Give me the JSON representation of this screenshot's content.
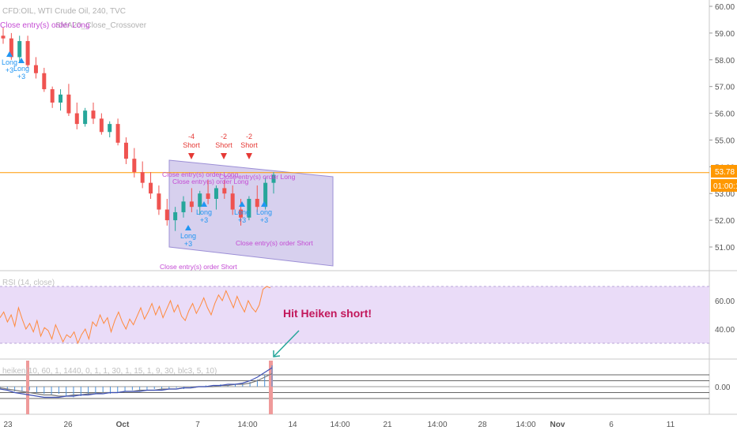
{
  "header": {
    "symbol_line": "CFD:OIL, WTI Crude Oil, 240, TVC",
    "strategy_line": "SMA20_Close_Crossover",
    "overlap_text": "Close entry(s) order Long"
  },
  "price_axis": {
    "ticks": [
      "60.00",
      "59.00",
      "58.00",
      "57.00",
      "56.00",
      "55.00",
      "54.00",
      "53.00",
      "52.00",
      "51.00"
    ],
    "last_price": "53.78",
    "countdown": "01:00:1?"
  },
  "rsi_pane": {
    "label": "RSI (14, close)",
    "ticks": [
      "60.00",
      "40.00"
    ]
  },
  "heiken_pane": {
    "label": "heiken(10, 60, 1, 1440, 0, 1, 1, 30, 1, 15, 1, 9, 30, blc3, 5, 10)",
    "ticks": [
      "0.00"
    ]
  },
  "annotation": {
    "text": "Hit Heiken short!"
  },
  "time_axis": [
    "23",
    "26",
    "Oct",
    "7",
    "14:00",
    "14",
    "14:00",
    "21",
    "14:00",
    "28",
    "14:00",
    "Nov",
    "6",
    "11"
  ],
  "signals": [
    {
      "kind": "short",
      "count": "-4",
      "label": "Short"
    },
    {
      "kind": "short",
      "count": "-2",
      "label": "Short"
    },
    {
      "kind": "short",
      "count": "-2",
      "label": "Short"
    },
    {
      "kind": "long",
      "label": "Long",
      "count": "+3"
    },
    {
      "kind": "long",
      "label": "Long",
      "count": "+3"
    },
    {
      "kind": "long",
      "label": "Long",
      "count": "+3"
    },
    {
      "kind": "long",
      "label": "Long",
      "count": "+3"
    },
    {
      "kind": "long",
      "label": "Long",
      "count": "+3"
    },
    {
      "kind": "long",
      "label": "Long",
      "count": "+3"
    }
  ],
  "order_texts": [
    "Close entry(s) order Long",
    "Close entry(s) order Long",
    "Close entry(s) order Long",
    "Close entry(s) order Short",
    "Close entry(s) order Short"
  ],
  "colors": {
    "up": "#26a69a",
    "down": "#ef5350",
    "rsi_line": "#ff8a3d",
    "rsi_band": "#eadcf8",
    "channel_fill": "#c9c0e8",
    "channel_stroke": "#9c8fd6",
    "price_line": "#ff9800",
    "short_signal": "#e53935",
    "long_signal": "#2196f3",
    "close_order": "#c44bd4",
    "annotation": "#c2185b",
    "arrow": "#26a69a",
    "heiken_hist": "#4a90d9",
    "heiken_fast": "#3f51b5",
    "heiken_slow": "#7b7b7b",
    "heiken_marker": "#ef9a9a"
  },
  "chart_data": {
    "type": "candlestick",
    "y_range": [
      50.4,
      60.2
    ],
    "ohlc": [
      [
        58.9,
        59.2,
        58.6,
        58.8
      ],
      [
        58.8,
        59.0,
        58.0,
        58.1
      ],
      [
        58.1,
        58.9,
        57.9,
        58.7
      ],
      [
        58.7,
        58.9,
        57.7,
        57.8
      ],
      [
        57.8,
        58.1,
        57.3,
        57.5
      ],
      [
        57.5,
        57.7,
        56.8,
        56.9
      ],
      [
        56.9,
        57.0,
        56.2,
        56.4
      ],
      [
        56.4,
        56.9,
        56.1,
        56.7
      ],
      [
        56.7,
        57.1,
        55.9,
        56.0
      ],
      [
        56.0,
        56.4,
        55.4,
        55.6
      ],
      [
        55.6,
        56.2,
        55.5,
        56.1
      ],
      [
        56.1,
        56.4,
        55.6,
        55.8
      ],
      [
        55.8,
        56.0,
        55.2,
        55.3
      ],
      [
        55.3,
        55.7,
        55.1,
        55.6
      ],
      [
        55.6,
        55.8,
        54.8,
        54.9
      ],
      [
        54.9,
        55.1,
        54.1,
        54.3
      ],
      [
        54.3,
        54.7,
        53.6,
        53.8
      ],
      [
        53.8,
        54.2,
        53.2,
        53.4
      ],
      [
        53.4,
        53.8,
        52.8,
        53.0
      ],
      [
        53.0,
        53.3,
        52.2,
        52.4
      ],
      [
        52.4,
        52.8,
        51.8,
        52.0
      ],
      [
        52.0,
        52.5,
        51.6,
        52.3
      ],
      [
        52.3,
        52.9,
        52.1,
        52.7
      ],
      [
        52.7,
        53.2,
        52.3,
        52.5
      ],
      [
        52.5,
        53.1,
        52.2,
        53.0
      ],
      [
        53.0,
        53.5,
        52.6,
        52.8
      ],
      [
        52.8,
        53.3,
        52.4,
        53.2
      ],
      [
        53.2,
        53.5,
        52.8,
        53.0
      ],
      [
        53.0,
        53.3,
        52.2,
        52.4
      ],
      [
        52.4,
        52.8,
        51.8,
        52.1
      ],
      [
        52.1,
        52.9,
        52.0,
        52.8
      ],
      [
        52.8,
        53.3,
        52.3,
        52.5
      ],
      [
        52.5,
        53.6,
        52.4,
        53.4
      ],
      [
        53.4,
        53.8,
        53.0,
        53.7
      ]
    ],
    "last_price": 53.78,
    "rsi": {
      "range": [
        20,
        80
      ],
      "bands": [
        30,
        70
      ],
      "values": [
        48,
        52,
        45,
        50,
        42,
        55,
        47,
        40,
        44,
        38,
        46,
        35,
        41,
        39,
        33,
        43,
        37,
        31,
        36,
        34,
        38,
        30,
        36,
        40,
        33,
        45,
        42,
        50,
        44,
        48,
        38,
        46,
        52,
        45,
        40,
        47,
        43,
        49,
        55,
        47,
        52,
        58,
        50,
        56,
        48,
        54,
        60,
        52,
        57,
        49,
        46,
        53,
        58,
        51,
        56,
        62,
        55,
        50,
        58,
        64,
        60,
        67,
        61,
        55,
        63,
        57,
        52,
        60,
        55,
        52,
        57,
        68,
        70,
        69
      ]
    },
    "heiken": {
      "range": [
        -2.2,
        2.2
      ],
      "levels": [
        1,
        0.5,
        -0.5,
        -1
      ],
      "hist": [
        -0.2,
        -0.3,
        -0.4,
        -0.4,
        -0.3,
        -0.5,
        -0.6,
        -0.7,
        -0.6,
        -0.8,
        -0.9,
        -0.8,
        -0.7,
        -0.6,
        -0.5,
        -0.6,
        -0.5,
        -0.4,
        -0.3,
        -0.4,
        -0.3,
        -0.2,
        -0.3,
        -0.2,
        -0.1,
        -0.2,
        -0.1,
        0.0,
        0.1,
        0.0,
        0.2,
        0.1,
        0.2,
        0.3,
        0.4,
        0.6,
        1.0,
        1.8
      ],
      "fast": [
        -0.2,
        -0.3,
        -0.5,
        -0.6,
        -0.7,
        -0.8,
        -0.9,
        -0.9,
        -0.9,
        -0.8,
        -0.8,
        -0.7,
        -0.7,
        -0.6,
        -0.6,
        -0.5,
        -0.5,
        -0.4,
        -0.4,
        -0.4,
        -0.3,
        -0.3,
        -0.3,
        -0.2,
        -0.2,
        -0.1,
        -0.1,
        0.0,
        0.0,
        0.1,
        0.1,
        0.2,
        0.2,
        0.3,
        0.5,
        0.8,
        1.2,
        1.6
      ],
      "slow": [
        -0.1,
        -0.2,
        -0.3,
        -0.4,
        -0.5,
        -0.6,
        -0.7,
        -0.7,
        -0.8,
        -0.8,
        -0.7,
        -0.7,
        -0.6,
        -0.6,
        -0.5,
        -0.5,
        -0.5,
        -0.4,
        -0.4,
        -0.3,
        -0.3,
        -0.3,
        -0.2,
        -0.2,
        -0.2,
        -0.1,
        -0.1,
        0.0,
        0.0,
        0.0,
        0.1,
        0.1,
        0.2,
        0.2,
        0.3,
        0.5,
        0.8,
        1.1
      ]
    }
  }
}
